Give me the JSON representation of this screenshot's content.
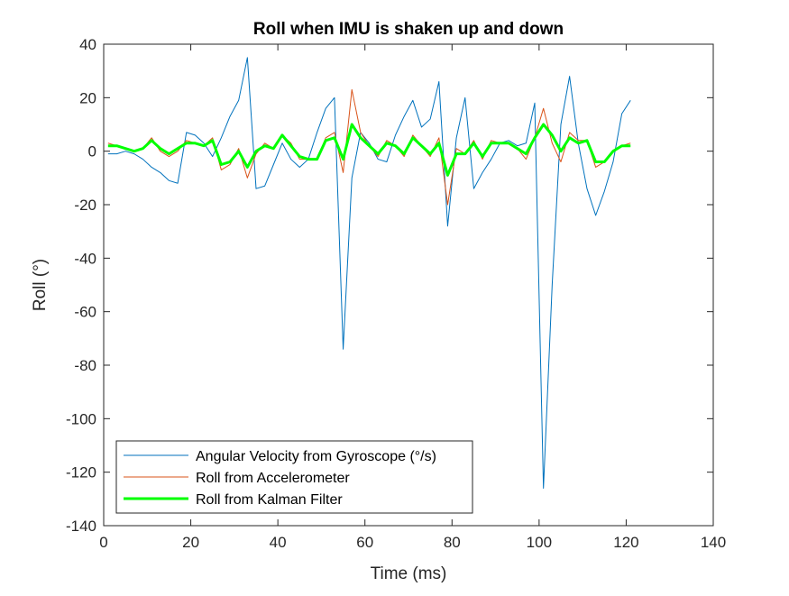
{
  "chart_data": {
    "type": "line",
    "title": "Roll when IMU is shaken up and down",
    "x_label": "Time (ms)",
    "y_label": "Roll (°)",
    "x": [
      1,
      3,
      5,
      7,
      9,
      11,
      13,
      15,
      17,
      19,
      21,
      23,
      25,
      27,
      29,
      31,
      33,
      35,
      37,
      39,
      41,
      43,
      45,
      47,
      49,
      51,
      53,
      55,
      57,
      59,
      61,
      63,
      65,
      67,
      69,
      71,
      73,
      75,
      77,
      79,
      81,
      83,
      85,
      87,
      89,
      91,
      93,
      95,
      97,
      99,
      101,
      103,
      105,
      107,
      109,
      111,
      113,
      115,
      117,
      119,
      121
    ],
    "series": [
      {
        "name": "Angular Velocity from Gyroscope (°/s)",
        "color": "#0072bd",
        "width": 1,
        "values": [
          -1,
          -1,
          0,
          -1,
          -3,
          -6,
          -8,
          -11,
          -12,
          7,
          6,
          3,
          -2,
          5,
          13,
          19,
          35,
          -14,
          -13,
          -5,
          3,
          -3,
          -6,
          -3,
          7,
          16,
          20,
          -74,
          -10,
          7,
          3,
          -3,
          -4,
          6,
          13,
          19,
          9,
          12,
          26,
          -28,
          5,
          20,
          -14,
          -8,
          -3,
          3,
          4,
          2,
          3,
          18,
          -126,
          -50,
          10,
          28,
          3,
          -14,
          -24,
          -15,
          -4,
          14,
          19
        ]
      },
      {
        "name": "Roll from Accelerometer",
        "color": "#d95319",
        "width": 1,
        "values": [
          3,
          2,
          1,
          0,
          1,
          5,
          0,
          -2,
          0,
          4,
          3,
          2,
          5,
          -7,
          -5,
          1,
          -10,
          -1,
          3,
          1,
          6,
          3,
          -3,
          -3,
          -3,
          5,
          7,
          -8,
          23,
          7,
          2,
          -2,
          4,
          2,
          -2,
          6,
          2,
          -2,
          5,
          -20,
          1,
          -1,
          4,
          -3,
          4,
          3,
          3,
          1,
          -3,
          5,
          16,
          3,
          -4,
          7,
          4,
          4,
          -6,
          -4,
          0,
          2,
          3
        ]
      },
      {
        "name": "Roll from Kalman Filter",
        "color": "#00ff00",
        "width": 3,
        "values": [
          2,
          2,
          1,
          0,
          1,
          4,
          1,
          -1,
          1,
          3,
          3,
          2,
          4,
          -5,
          -4,
          0,
          -6,
          0,
          2,
          1,
          6,
          2,
          -2,
          -3,
          -3,
          4,
          5,
          -3,
          10,
          5,
          2,
          -1,
          3,
          2,
          -1,
          5,
          2,
          -1,
          3,
          -9,
          -1,
          -1,
          3,
          -2,
          3,
          3,
          3,
          1,
          -1,
          5,
          10,
          6,
          0,
          5,
          3,
          4,
          -4,
          -4,
          0,
          2,
          2
        ]
      }
    ],
    "xlim": [
      0,
      140
    ],
    "xticks": [
      0,
      20,
      40,
      60,
      80,
      100,
      120,
      140
    ],
    "ylim": [
      -140,
      40
    ],
    "yticks": [
      -140,
      -120,
      -100,
      -80,
      -60,
      -40,
      -20,
      0,
      20,
      40
    ],
    "legend": "lower left"
  }
}
